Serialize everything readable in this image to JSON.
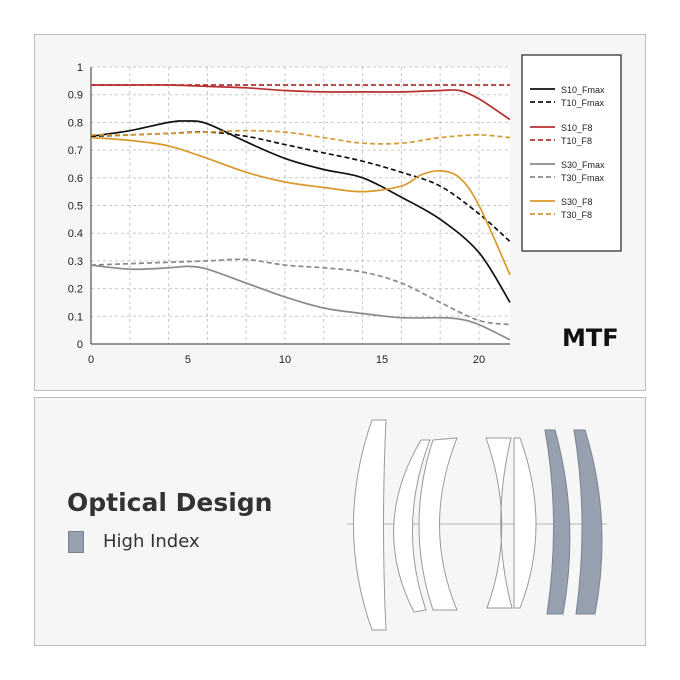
{
  "chart_data": {
    "type": "line",
    "title": "MTF",
    "xlabel": "",
    "ylabel": "",
    "xlim": [
      0,
      21.6
    ],
    "ylim": [
      0,
      1
    ],
    "xticks": [
      0,
      5,
      10,
      15,
      20
    ],
    "yticks": [
      0,
      0.1,
      0.2,
      0.3,
      0.4,
      0.5,
      0.6,
      0.7,
      0.8,
      0.9,
      1
    ],
    "ytick_labels": [
      "0",
      "0.1",
      "0.2",
      "0.3",
      "0.4",
      "0.5",
      "0.6",
      "0.7",
      "0.8",
      "0.9",
      "1"
    ],
    "grid": true,
    "legend_position": "right",
    "series": [
      {
        "name": "S10_Fmax",
        "color": "#111111",
        "dash": "solid",
        "x": [
          0,
          2,
          4,
          5,
          6,
          8,
          10,
          12,
          14,
          16,
          18,
          20,
          21.6
        ],
        "y": [
          0.75,
          0.77,
          0.8,
          0.805,
          0.795,
          0.73,
          0.67,
          0.63,
          0.6,
          0.53,
          0.45,
          0.33,
          0.15
        ]
      },
      {
        "name": "T10_Fmax",
        "color": "#111111",
        "dash": "dashed",
        "x": [
          0,
          2,
          4,
          6,
          8,
          10,
          12,
          14,
          16,
          18,
          20,
          21.6
        ],
        "y": [
          0.75,
          0.755,
          0.76,
          0.765,
          0.75,
          0.72,
          0.69,
          0.66,
          0.62,
          0.57,
          0.47,
          0.37
        ]
      },
      {
        "name": "S10_F8",
        "color": "#b8312f",
        "dash": "solid",
        "x": [
          0,
          2,
          4,
          6,
          8,
          10,
          12,
          14,
          16,
          18,
          19,
          20,
          21.6
        ],
        "y": [
          0.935,
          0.935,
          0.935,
          0.93,
          0.925,
          0.915,
          0.91,
          0.91,
          0.91,
          0.915,
          0.915,
          0.885,
          0.81
        ]
      },
      {
        "name": "T10_F8",
        "color": "#b8312f",
        "dash": "dashed",
        "x": [
          0,
          5,
          10,
          15,
          21.6
        ],
        "y": [
          0.935,
          0.935,
          0.935,
          0.935,
          0.935
        ]
      },
      {
        "name": "S30_Fmax",
        "color": "#8a8a8a",
        "dash": "solid",
        "x": [
          0,
          2,
          4,
          5,
          6,
          8,
          10,
          12,
          14,
          16,
          18,
          19,
          20,
          21.6
        ],
        "y": [
          0.285,
          0.27,
          0.275,
          0.28,
          0.27,
          0.22,
          0.17,
          0.13,
          0.11,
          0.095,
          0.095,
          0.09,
          0.07,
          0.015
        ]
      },
      {
        "name": "T30_Fmax",
        "color": "#8a8a8a",
        "dash": "dashed",
        "x": [
          0,
          2,
          4,
          6,
          8,
          10,
          12,
          14,
          16,
          18,
          20,
          21.6
        ],
        "y": [
          0.285,
          0.29,
          0.295,
          0.3,
          0.305,
          0.285,
          0.275,
          0.26,
          0.22,
          0.15,
          0.085,
          0.07
        ]
      },
      {
        "name": "S30_F8",
        "color": "#d99a2b",
        "dash": "solid",
        "x": [
          0,
          2,
          4,
          6,
          8,
          10,
          12,
          14,
          16,
          17,
          18,
          19,
          20,
          21.6
        ],
        "y": [
          0.745,
          0.735,
          0.715,
          0.67,
          0.62,
          0.585,
          0.565,
          0.55,
          0.57,
          0.61,
          0.625,
          0.6,
          0.5,
          0.25
        ]
      },
      {
        "name": "T30_F8",
        "color": "#d99a2b",
        "dash": "dashed",
        "x": [
          0,
          2,
          4,
          6,
          8,
          10,
          12,
          14,
          16,
          18,
          20,
          21.6
        ],
        "y": [
          0.755,
          0.755,
          0.76,
          0.765,
          0.77,
          0.765,
          0.745,
          0.725,
          0.725,
          0.745,
          0.755,
          0.745
        ]
      }
    ]
  },
  "design": {
    "title": "Optical Design",
    "legend_label": "High Index",
    "high_index_color": "#96a0ae"
  }
}
